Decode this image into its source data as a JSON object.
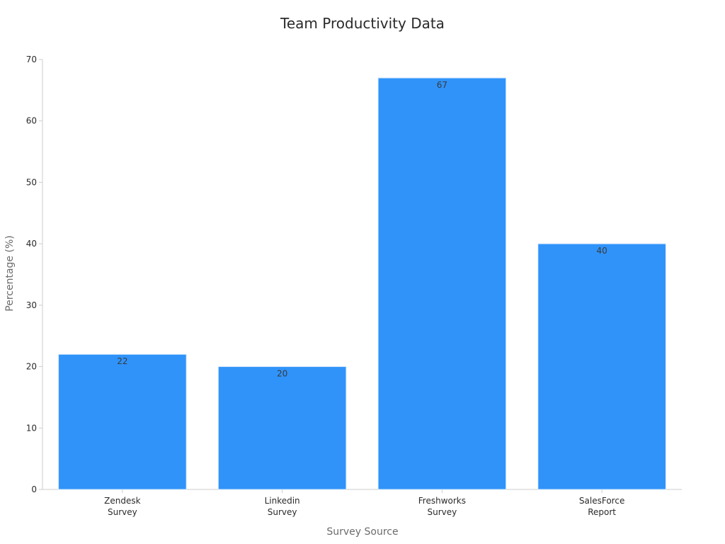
{
  "chart_data": {
    "type": "bar",
    "title": "Team Productivity Data",
    "xlabel": "Survey Source",
    "ylabel": "Percentage (%)",
    "categories": [
      [
        "Zendesk",
        "Survey"
      ],
      [
        "Linkedin",
        "Survey"
      ],
      [
        "Freshworks",
        "Survey"
      ],
      [
        "SalesForce",
        "Report"
      ]
    ],
    "values": [
      22,
      20,
      67,
      40
    ],
    "data_labels": [
      "22",
      "20",
      "67",
      "40"
    ],
    "ylim": [
      0,
      70
    ],
    "yticks": [
      0,
      10,
      20,
      30,
      40,
      50,
      60,
      70
    ],
    "grid": false,
    "legend": "none",
    "colors": {
      "bar": "#2f93fa",
      "bar_edge": "#d6e9fe"
    }
  }
}
